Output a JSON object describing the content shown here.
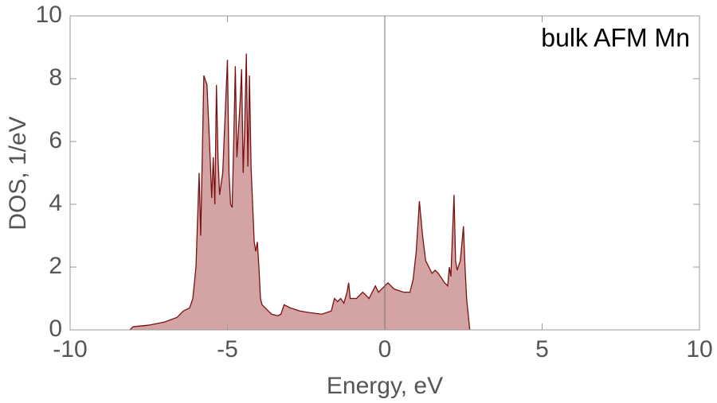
{
  "chart_data": {
    "type": "area",
    "annotation": "bulk AFM Mn",
    "x_label": "Energy, eV",
    "y_label": "DOS, 1/eV",
    "xlim": [
      -10,
      10
    ],
    "xticks": [
      -10,
      -5,
      0,
      5,
      10
    ],
    "ylim": [
      0,
      10
    ],
    "yticks": [
      0,
      2,
      4,
      6,
      8,
      10
    ],
    "fill_color": "#d4a3a3",
    "line_color": "#7a1010",
    "x": [
      -8.1,
      -8.0,
      -7.5,
      -7.0,
      -6.6,
      -6.4,
      -6.2,
      -6.1,
      -6.0,
      -5.95,
      -5.9,
      -5.85,
      -5.8,
      -5.75,
      -5.65,
      -5.55,
      -5.5,
      -5.45,
      -5.4,
      -5.35,
      -5.3,
      -5.25,
      -5.15,
      -5.0,
      -4.95,
      -4.9,
      -4.85,
      -4.8,
      -4.75,
      -4.7,
      -4.6,
      -4.55,
      -4.5,
      -4.45,
      -4.4,
      -4.35,
      -4.3,
      -4.25,
      -4.2,
      -4.15,
      -4.1,
      -4.05,
      -4.0,
      -3.95,
      -3.9,
      -3.8,
      -3.6,
      -3.4,
      -3.3,
      -3.2,
      -3.0,
      -2.7,
      -2.4,
      -2.0,
      -1.7,
      -1.6,
      -1.5,
      -1.4,
      -1.3,
      -1.2,
      -1.15,
      -1.1,
      -0.9,
      -0.7,
      -0.5,
      -0.4,
      -0.3,
      -0.2,
      -0.1,
      0.1,
      0.3,
      0.6,
      0.8,
      0.9,
      1.0,
      1.1,
      1.2,
      1.3,
      1.5,
      1.6,
      1.7,
      1.9,
      2.0,
      2.05,
      2.1,
      2.2,
      2.25,
      2.3,
      2.4,
      2.5,
      2.55,
      2.6,
      2.7
    ],
    "values": [
      0,
      0.1,
      0.15,
      0.25,
      0.4,
      0.6,
      0.7,
      1.0,
      2.0,
      3.5,
      5.0,
      3.0,
      5.5,
      8.1,
      7.8,
      5.5,
      4.2,
      5.5,
      4.0,
      7.8,
      5.5,
      4.3,
      5.0,
      8.6,
      5.0,
      4.0,
      3.9,
      6.0,
      8.4,
      5.5,
      7.2,
      8.3,
      5.0,
      6.5,
      8.8,
      5.2,
      8.1,
      5.2,
      4.0,
      2.8,
      2.5,
      2.8,
      2.0,
      1.0,
      0.8,
      0.7,
      0.5,
      0.45,
      0.5,
      0.8,
      0.7,
      0.6,
      0.55,
      0.5,
      0.6,
      1.0,
      0.9,
      1.0,
      0.85,
      1.2,
      1.5,
      1.0,
      1.0,
      1.2,
      1.0,
      1.2,
      1.4,
      1.2,
      1.3,
      1.5,
      1.3,
      1.2,
      1.2,
      1.6,
      2.5,
      4.1,
      3.0,
      2.2,
      1.8,
      1.9,
      1.8,
      1.5,
      1.4,
      2.0,
      1.7,
      4.3,
      2.2,
      1.9,
      2.2,
      3.3,
      2.0,
      1.0,
      0
    ]
  }
}
